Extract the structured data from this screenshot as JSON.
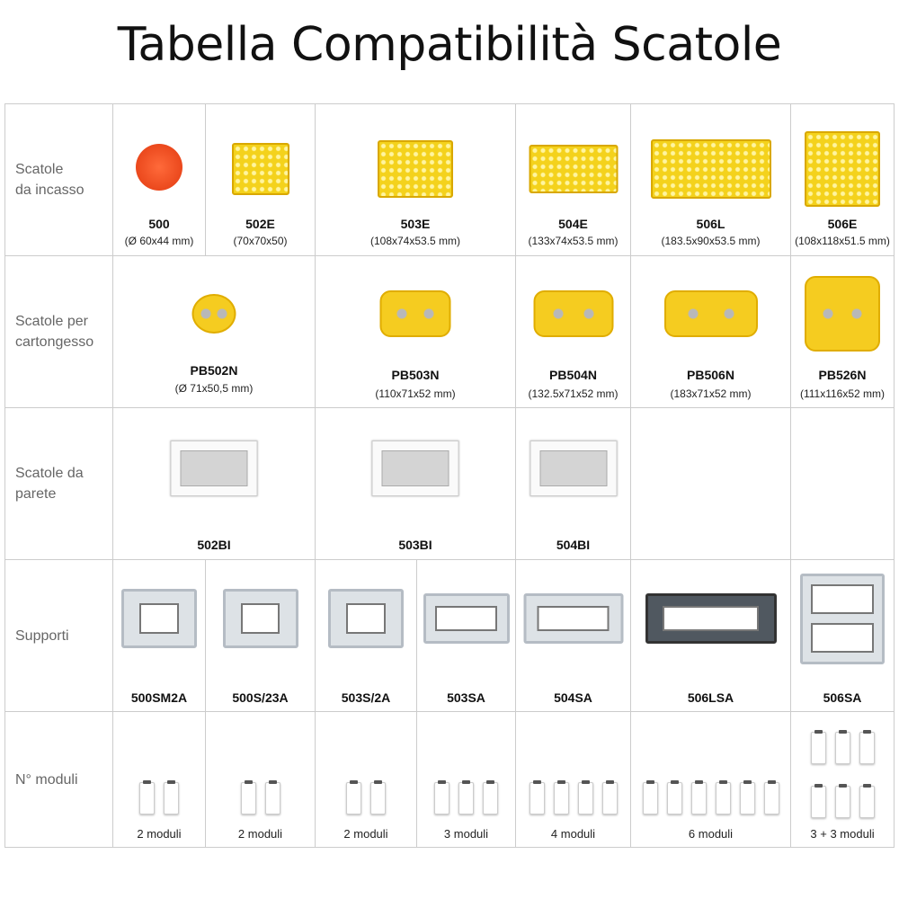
{
  "title": "Tabella Compatibilità Scatole",
  "rows": [
    {
      "label": "Scatole\nda incasso",
      "cells": [
        {
          "code": "500",
          "dims": "(Ø 60x44 mm)",
          "image": "round-red-box"
        },
        {
          "code": "502E",
          "dims": "(70x70x50)",
          "image": "yellow-box"
        },
        {
          "code": "503E",
          "dims": "(108x74x53.5 mm)",
          "image": "yellow-box"
        },
        {
          "code": "504E",
          "dims": "(133x74x53.5 mm)",
          "image": "yellow-box"
        },
        {
          "code": "506L",
          "dims": "(183.5x90x53.5 mm)",
          "image": "yellow-box"
        },
        {
          "code": "506E",
          "dims": "(108x118x51.5 mm)",
          "image": "yellow-box"
        }
      ]
    },
    {
      "label": "Scatole per\ncartongesso",
      "cells": [
        {
          "code": "PB502N",
          "dims": "(Ø 71x50,5 mm)",
          "image": "drywall-box"
        },
        {
          "code": "PB503N",
          "dims": "(110x71x52 mm)",
          "image": "drywall-box"
        },
        {
          "code": "PB504N",
          "dims": "(132.5x71x52 mm)",
          "image": "drywall-box"
        },
        {
          "code": "PB506N",
          "dims": "(183x71x52 mm)",
          "image": "drywall-box"
        },
        {
          "code": "PB526N",
          "dims": "(111x116x52 mm)",
          "image": "drywall-box"
        }
      ]
    },
    {
      "label": "Scatole da\nparete",
      "cells": [
        {
          "code": "502BI",
          "image": "wall-box"
        },
        {
          "code": "503BI",
          "image": "wall-box"
        },
        {
          "code": "504BI",
          "image": "wall-box"
        },
        {},
        {}
      ]
    },
    {
      "label": "Supporti",
      "cells": [
        {
          "code": "500SM2A",
          "image": "support-frame"
        },
        {
          "code": "500S/23A",
          "image": "support-frame"
        },
        {
          "code": "503S/2A",
          "image": "support-frame"
        },
        {
          "code": "503SA",
          "image": "support-frame"
        },
        {
          "code": "504SA",
          "image": "support-frame"
        },
        {
          "code": "506LSA",
          "image": "support-frame-dark"
        },
        {
          "code": "506SA",
          "image": "support-frame-double"
        }
      ]
    },
    {
      "label": "N° moduli",
      "cells": [
        {
          "modules": "2 moduli",
          "count": 2
        },
        {
          "modules": "2 moduli",
          "count": 2
        },
        {
          "modules": "2 moduli",
          "count": 2
        },
        {
          "modules": "3 moduli",
          "count": 3
        },
        {
          "modules": "4 moduli",
          "count": 4
        },
        {
          "modules": "6 moduli",
          "count": 6
        },
        {
          "modules": "3 + 3 moduli",
          "count": [
            3,
            3
          ]
        }
      ]
    }
  ]
}
